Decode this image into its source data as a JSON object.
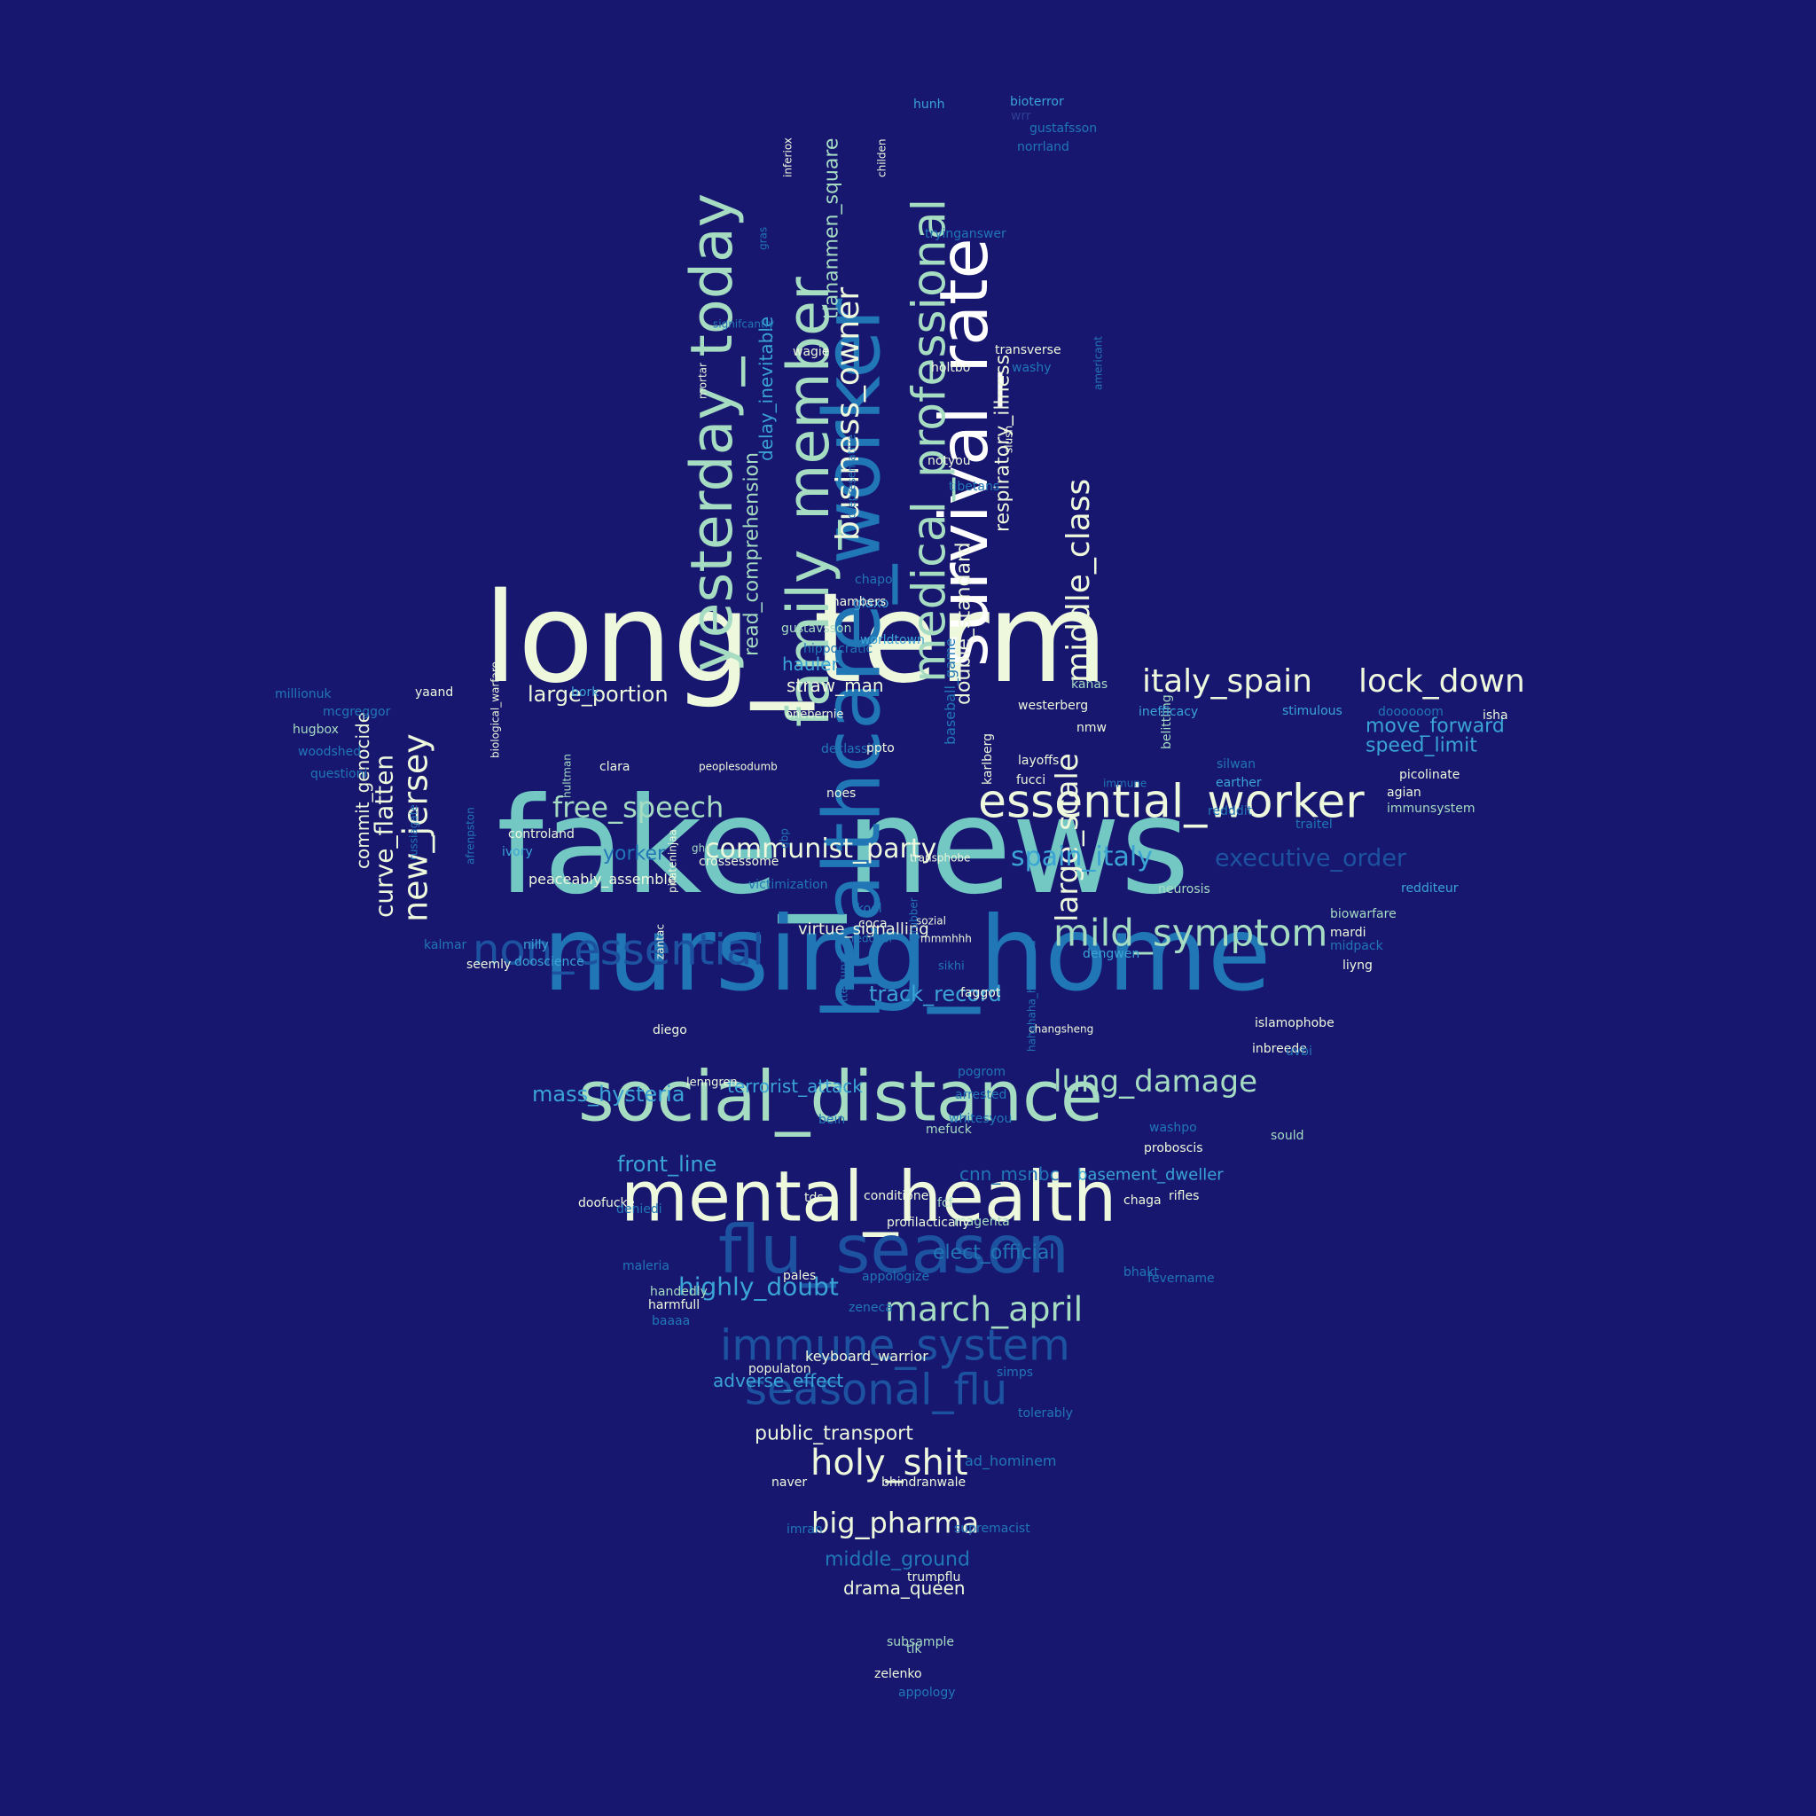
{
  "palette": {
    "background": "#171770",
    "cream": "#eef8dc",
    "white": "#ffffff",
    "mint": "#a6dcc2",
    "teal": "#74c8c4",
    "sky": "#3aa4d4",
    "blue": "#2176b6",
    "deep_blue": "#1c52a0",
    "dim_blue": "#2d3f94"
  },
  "words": [
    {
      "text": "long_term",
      "color": "cream"
    },
    {
      "text": "fake_news",
      "color": "teal"
    },
    {
      "text": "nursing_home",
      "color": "blue"
    },
    {
      "text": "healthcare_worker",
      "color": "blue"
    },
    {
      "text": "social_distance",
      "color": "mint"
    },
    {
      "text": "mental_health",
      "color": "cream"
    },
    {
      "text": "flu_season",
      "color": "deep_blue"
    },
    {
      "text": "survival_rate",
      "color": "white"
    },
    {
      "text": "family_member",
      "color": "mint"
    },
    {
      "text": "yesterday_today",
      "color": "mint"
    },
    {
      "text": "essential_worker",
      "color": "cream"
    },
    {
      "text": "immune_system",
      "color": "deep_blue"
    },
    {
      "text": "seasonal_flu",
      "color": "deep_blue"
    },
    {
      "text": "medical_professional",
      "color": "mint"
    },
    {
      "text": "non_essential",
      "color": "deep_blue"
    },
    {
      "text": "mild_symptom",
      "color": "mint"
    },
    {
      "text": "middle_class",
      "color": "cream"
    },
    {
      "text": "business_owner",
      "color": "cream"
    },
    {
      "text": "large_scale",
      "color": "cream"
    },
    {
      "text": "march_april",
      "color": "mint"
    },
    {
      "text": "new_jersey",
      "color": "cream"
    },
    {
      "text": "lung_damage",
      "color": "mint"
    },
    {
      "text": "holy_shit",
      "color": "cream"
    },
    {
      "text": "italy_spain",
      "color": "cream"
    },
    {
      "text": "lock_down",
      "color": "cream"
    },
    {
      "text": "communist_party",
      "color": "cream"
    },
    {
      "text": "free_speech",
      "color": "mint"
    },
    {
      "text": "curve_flatten",
      "color": "cream"
    },
    {
      "text": "large_portion",
      "color": "cream"
    },
    {
      "text": "spain_italy",
      "color": "sky"
    },
    {
      "text": "executive_order",
      "color": "deep_blue"
    },
    {
      "text": "big_pharma",
      "color": "cream"
    },
    {
      "text": "highly_doubt",
      "color": "sky"
    },
    {
      "text": "mass_hysteria",
      "color": "sky"
    },
    {
      "text": "track_record",
      "color": "sky"
    },
    {
      "text": "front_line",
      "color": "sky"
    },
    {
      "text": "respiratory_illness",
      "color": "cream"
    },
    {
      "text": "double_standard",
      "color": "cream"
    },
    {
      "text": "read_comprehension",
      "color": "mint"
    },
    {
      "text": "tiananmen_square",
      "color": "mint"
    },
    {
      "text": "delay_inevitable",
      "color": "sky"
    },
    {
      "text": "move_forward",
      "color": "sky"
    },
    {
      "text": "speed_limit",
      "color": "sky"
    },
    {
      "text": "commit_genocide",
      "color": "cream"
    },
    {
      "text": "terrorist_attack",
      "color": "sky"
    },
    {
      "text": "adverse_effect",
      "color": "sky"
    },
    {
      "text": "public_transport",
      "color": "cream"
    },
    {
      "text": "elect_official",
      "color": "blue"
    },
    {
      "text": "cnn_msnbc",
      "color": "blue"
    },
    {
      "text": "basement_dweller",
      "color": "sky"
    },
    {
      "text": "middle_ground",
      "color": "blue"
    },
    {
      "text": "drama_queen",
      "color": "cream"
    },
    {
      "text": "straw_man",
      "color": "cream"
    },
    {
      "text": "virtue_signalling",
      "color": "cream"
    },
    {
      "text": "keyboard_warrior",
      "color": "cream"
    },
    {
      "text": "yorker",
      "color": "blue"
    },
    {
      "text": "hauler",
      "color": "sky"
    },
    {
      "text": "peaceably_assemble",
      "color": "cream"
    },
    {
      "text": "ad_hominem",
      "color": "blue"
    },
    {
      "text": "victimization",
      "color": "blue"
    },
    {
      "text": "hippocratic",
      "color": "blue"
    },
    {
      "text": "worldtown",
      "color": "sky"
    },
    {
      "text": "gustavsson",
      "color": "mint"
    },
    {
      "text": "glaxo",
      "color": "sky"
    },
    {
      "text": "baseball_game",
      "color": "blue"
    },
    {
      "text": "karlberg",
      "color": "cream"
    },
    {
      "text": "westerberg",
      "color": "cream"
    },
    {
      "text": "kanas",
      "color": "mint"
    },
    {
      "text": "nmw",
      "color": "cream"
    },
    {
      "text": "belittling",
      "color": "mint"
    },
    {
      "text": "inefficacy",
      "color": "sky"
    },
    {
      "text": "stimulous",
      "color": "sky"
    },
    {
      "text": "doooooom",
      "color": "blue"
    },
    {
      "text": "isha",
      "color": "cream"
    },
    {
      "text": "layoffs",
      "color": "cream"
    },
    {
      "text": "fucci",
      "color": "cream"
    },
    {
      "text": "immune",
      "color": "blue"
    },
    {
      "text": "silwan",
      "color": "blue"
    },
    {
      "text": "earther",
      "color": "sky"
    },
    {
      "text": "picolinate",
      "color": "cream"
    },
    {
      "text": "agian",
      "color": "cream"
    },
    {
      "text": "immunsystem",
      "color": "mint"
    },
    {
      "text": "redddit",
      "color": "blue"
    },
    {
      "text": "traitel",
      "color": "blue"
    },
    {
      "text": "neurosis",
      "color": "mint"
    },
    {
      "text": "redditeur",
      "color": "sky"
    },
    {
      "text": "biowarfare",
      "color": "mint"
    },
    {
      "text": "mardi",
      "color": "cream"
    },
    {
      "text": "midpack",
      "color": "blue"
    },
    {
      "text": "liyng",
      "color": "cream"
    },
    {
      "text": "dengwen",
      "color": "sky"
    },
    {
      "text": "islamophobe",
      "color": "cream"
    },
    {
      "text": "inbreede",
      "color": "cream"
    },
    {
      "text": "uvbi",
      "color": "blue"
    },
    {
      "text": "sould",
      "color": "mint"
    },
    {
      "text": "rifles",
      "color": "cream"
    },
    {
      "text": "chaga",
      "color": "cream"
    },
    {
      "text": "bhakt",
      "color": "blue"
    },
    {
      "text": "fevername",
      "color": "blue"
    },
    {
      "text": "tolerably",
      "color": "blue"
    },
    {
      "text": "supremacist",
      "color": "blue"
    },
    {
      "text": "millionuk",
      "color": "blue"
    },
    {
      "text": "yaand",
      "color": "cream"
    },
    {
      "text": "mcgreggor",
      "color": "blue"
    },
    {
      "text": "hugbox",
      "color": "mint"
    },
    {
      "text": "woodshed",
      "color": "blue"
    },
    {
      "text": "questioni",
      "color": "blue"
    },
    {
      "text": "biological_warfare",
      "color": "cream"
    },
    {
      "text": "afrenpston",
      "color": "blue"
    },
    {
      "text": "russiagate",
      "color": "blue"
    },
    {
      "text": "hultman",
      "color": "mint"
    },
    {
      "text": "bork",
      "color": "sky"
    },
    {
      "text": "clara",
      "color": "cream"
    },
    {
      "text": "controland",
      "color": "cream"
    },
    {
      "text": "ivory",
      "color": "sky"
    },
    {
      "text": "dooscience",
      "color": "sky"
    },
    {
      "text": "kalmar",
      "color": "blue"
    },
    {
      "text": "nilly",
      "color": "sky"
    },
    {
      "text": "seemly",
      "color": "cream"
    },
    {
      "text": "zantac",
      "color": "cream"
    },
    {
      "text": "pirateninjaa",
      "color": "cream"
    },
    {
      "text": "peoplesodumb",
      "color": "cream"
    },
    {
      "text": "ghz",
      "color": "mint"
    },
    {
      "text": "gbp",
      "color": "blue"
    },
    {
      "text": "declassify",
      "color": "blue"
    },
    {
      "text": "ppto",
      "color": "cream"
    },
    {
      "text": "noes",
      "color": "cream"
    },
    {
      "text": "onebernie",
      "color": "cream"
    },
    {
      "text": "crossessome",
      "color": "cream"
    },
    {
      "text": "transphobe",
      "color": "cream"
    },
    {
      "text": "kool",
      "color": "blue"
    },
    {
      "text": "sozial",
      "color": "cream"
    },
    {
      "text": "grubber",
      "color": "blue"
    },
    {
      "text": "coca",
      "color": "cream"
    },
    {
      "text": "redditor",
      "color": "blue"
    },
    {
      "text": "mmmhhh",
      "color": "cream"
    },
    {
      "text": "sikhi",
      "color": "blue"
    },
    {
      "text": "faggot",
      "color": "cream"
    },
    {
      "text": "ttestupa",
      "color": "blue"
    },
    {
      "text": "diego",
      "color": "cream"
    },
    {
      "text": "changsheng",
      "color": "cream"
    },
    {
      "text": "hahahaha_hahahaha",
      "color": "blue"
    },
    {
      "text": "pogrom",
      "color": "blue"
    },
    {
      "text": "arrested",
      "color": "blue"
    },
    {
      "text": "lenngren",
      "color": "cream"
    },
    {
      "text": "whitesyou",
      "color": "blue"
    },
    {
      "text": "bein",
      "color": "blue"
    },
    {
      "text": "mefuck",
      "color": "mint"
    },
    {
      "text": "washpo",
      "color": "blue"
    },
    {
      "text": "proboscis",
      "color": "cream"
    },
    {
      "text": "doofucke",
      "color": "cream"
    },
    {
      "text": "deniedi",
      "color": "blue"
    },
    {
      "text": "tds",
      "color": "cream"
    },
    {
      "text": "conditioner",
      "color": "cream"
    },
    {
      "text": "fcf",
      "color": "mint"
    },
    {
      "text": "magenta",
      "color": "mint"
    },
    {
      "text": "profilactically",
      "color": "cream"
    },
    {
      "text": "maleria",
      "color": "blue"
    },
    {
      "text": "pales",
      "color": "cream"
    },
    {
      "text": "appologize",
      "color": "blue"
    },
    {
      "text": "handedly",
      "color": "mint"
    },
    {
      "text": "harmfull",
      "color": "cream"
    },
    {
      "text": "baaaa",
      "color": "blue"
    },
    {
      "text": "zeneca",
      "color": "blue"
    },
    {
      "text": "populaton",
      "color": "cream"
    },
    {
      "text": "simps",
      "color": "blue"
    },
    {
      "text": "naver",
      "color": "cream"
    },
    {
      "text": "bhindranwale",
      "color": "cream"
    },
    {
      "text": "imran",
      "color": "blue"
    },
    {
      "text": "trumpflu",
      "color": "cream"
    },
    {
      "text": "subsample",
      "color": "mint"
    },
    {
      "text": "tik",
      "color": "mint"
    },
    {
      "text": "zelenko",
      "color": "cream"
    },
    {
      "text": "appology",
      "color": "blue"
    },
    {
      "text": "hunh",
      "color": "sky"
    },
    {
      "text": "bioterror",
      "color": "sky"
    },
    {
      "text": "wrr",
      "color": "dim_blue"
    },
    {
      "text": "gustafsson",
      "color": "blue"
    },
    {
      "text": "norrland",
      "color": "blue"
    },
    {
      "text": "inferiox",
      "color": "cream"
    },
    {
      "text": "gras",
      "color": "blue"
    },
    {
      "text": "childen",
      "color": "cream"
    },
    {
      "text": "tryinganswer",
      "color": "blue"
    },
    {
      "text": "mortar",
      "color": "cream"
    },
    {
      "text": "signifcantly",
      "color": "blue"
    },
    {
      "text": "wagie",
      "color": "cream"
    },
    {
      "text": "transverse",
      "color": "cream"
    },
    {
      "text": "washy",
      "color": "blue"
    },
    {
      "text": "holtbo",
      "color": "cream"
    },
    {
      "text": "americant",
      "color": "blue"
    },
    {
      "text": "slush",
      "color": "cream"
    },
    {
      "text": "notyou",
      "color": "cream"
    },
    {
      "text": "tibetans",
      "color": "blue"
    },
    {
      "text": "drepresentative",
      "color": "blue"
    },
    {
      "text": "chapo",
      "color": "blue"
    },
    {
      "text": "chambers",
      "color": "cream"
    },
    {
      "text": "noninfluenza",
      "color": "mint"
    },
    {
      "text": "pippi",
      "color": "blue"
    },
    {
      "text": "hissy",
      "color": "blue"
    },
    {
      "text": "gskn",
      "color": "blue"
    }
  ]
}
